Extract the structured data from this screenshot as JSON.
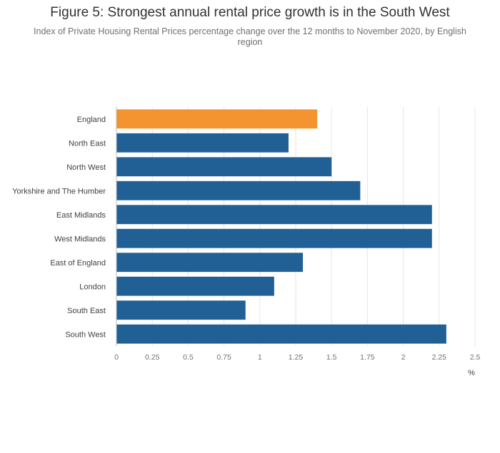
{
  "chart_data": {
    "type": "bar",
    "orientation": "horizontal",
    "title": "Figure 5: Strongest annual rental price growth is in the South West",
    "subtitle": "Index of Private Housing Rental Prices percentage change over the 12 months to November 2020, by English region",
    "categories": [
      "England",
      "North East",
      "North West",
      "Yorkshire and The Humber",
      "East Midlands",
      "West Midlands",
      "East of England",
      "London",
      "South East",
      "South West"
    ],
    "values": [
      1.4,
      1.2,
      1.5,
      1.7,
      2.2,
      2.2,
      1.3,
      1.1,
      0.9,
      2.3
    ],
    "highlight": "England",
    "colors": {
      "highlight": "#f39431",
      "default": "#206095"
    },
    "xlim": [
      0,
      2.5
    ],
    "xticks": [
      "0",
      "0.25",
      "0.5",
      "0.75",
      "1",
      "1.25",
      "1.5",
      "1.75",
      "2",
      "2.25",
      "2.5"
    ],
    "xlabel": "%",
    "grid": true,
    "legend": "none"
  }
}
